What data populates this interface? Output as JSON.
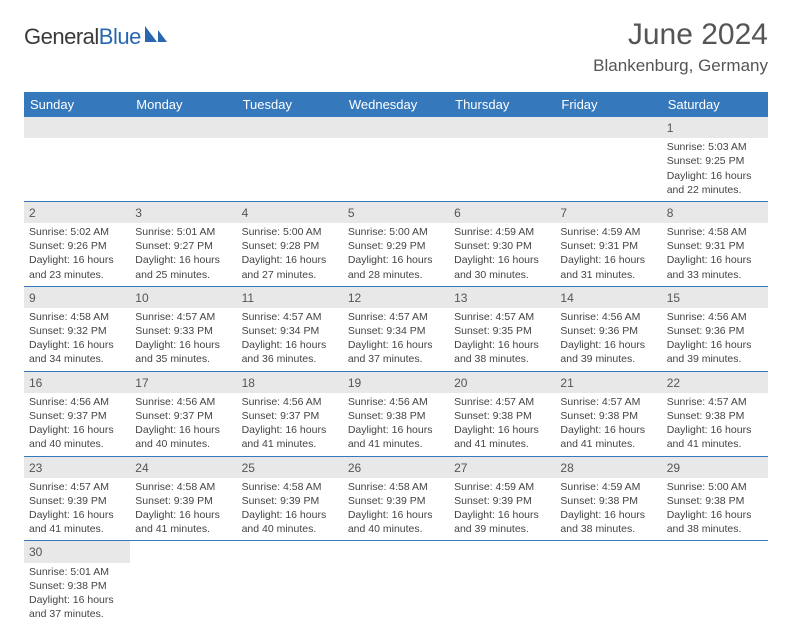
{
  "brand": {
    "general": "General",
    "blue": "Blue"
  },
  "title": "June 2024",
  "location": "Blankenburg, Germany",
  "colors": {
    "header_bg": "#3678bc",
    "header_fg": "#ffffff",
    "daybar_bg": "#e8e8e8",
    "rule": "#3678bc"
  },
  "weekdays": [
    "Sunday",
    "Monday",
    "Tuesday",
    "Wednesday",
    "Thursday",
    "Friday",
    "Saturday"
  ],
  "weeks": [
    [
      null,
      null,
      null,
      null,
      null,
      null,
      {
        "n": "1",
        "sr": "5:03 AM",
        "ss": "9:25 PM",
        "dl": "16 hours and 22 minutes."
      }
    ],
    [
      {
        "n": "2",
        "sr": "5:02 AM",
        "ss": "9:26 PM",
        "dl": "16 hours and 23 minutes."
      },
      {
        "n": "3",
        "sr": "5:01 AM",
        "ss": "9:27 PM",
        "dl": "16 hours and 25 minutes."
      },
      {
        "n": "4",
        "sr": "5:00 AM",
        "ss": "9:28 PM",
        "dl": "16 hours and 27 minutes."
      },
      {
        "n": "5",
        "sr": "5:00 AM",
        "ss": "9:29 PM",
        "dl": "16 hours and 28 minutes."
      },
      {
        "n": "6",
        "sr": "4:59 AM",
        "ss": "9:30 PM",
        "dl": "16 hours and 30 minutes."
      },
      {
        "n": "7",
        "sr": "4:59 AM",
        "ss": "9:31 PM",
        "dl": "16 hours and 31 minutes."
      },
      {
        "n": "8",
        "sr": "4:58 AM",
        "ss": "9:31 PM",
        "dl": "16 hours and 33 minutes."
      }
    ],
    [
      {
        "n": "9",
        "sr": "4:58 AM",
        "ss": "9:32 PM",
        "dl": "16 hours and 34 minutes."
      },
      {
        "n": "10",
        "sr": "4:57 AM",
        "ss": "9:33 PM",
        "dl": "16 hours and 35 minutes."
      },
      {
        "n": "11",
        "sr": "4:57 AM",
        "ss": "9:34 PM",
        "dl": "16 hours and 36 minutes."
      },
      {
        "n": "12",
        "sr": "4:57 AM",
        "ss": "9:34 PM",
        "dl": "16 hours and 37 minutes."
      },
      {
        "n": "13",
        "sr": "4:57 AM",
        "ss": "9:35 PM",
        "dl": "16 hours and 38 minutes."
      },
      {
        "n": "14",
        "sr": "4:56 AM",
        "ss": "9:36 PM",
        "dl": "16 hours and 39 minutes."
      },
      {
        "n": "15",
        "sr": "4:56 AM",
        "ss": "9:36 PM",
        "dl": "16 hours and 39 minutes."
      }
    ],
    [
      {
        "n": "16",
        "sr": "4:56 AM",
        "ss": "9:37 PM",
        "dl": "16 hours and 40 minutes."
      },
      {
        "n": "17",
        "sr": "4:56 AM",
        "ss": "9:37 PM",
        "dl": "16 hours and 40 minutes."
      },
      {
        "n": "18",
        "sr": "4:56 AM",
        "ss": "9:37 PM",
        "dl": "16 hours and 41 minutes."
      },
      {
        "n": "19",
        "sr": "4:56 AM",
        "ss": "9:38 PM",
        "dl": "16 hours and 41 minutes."
      },
      {
        "n": "20",
        "sr": "4:57 AM",
        "ss": "9:38 PM",
        "dl": "16 hours and 41 minutes."
      },
      {
        "n": "21",
        "sr": "4:57 AM",
        "ss": "9:38 PM",
        "dl": "16 hours and 41 minutes."
      },
      {
        "n": "22",
        "sr": "4:57 AM",
        "ss": "9:38 PM",
        "dl": "16 hours and 41 minutes."
      }
    ],
    [
      {
        "n": "23",
        "sr": "4:57 AM",
        "ss": "9:39 PM",
        "dl": "16 hours and 41 minutes."
      },
      {
        "n": "24",
        "sr": "4:58 AM",
        "ss": "9:39 PM",
        "dl": "16 hours and 41 minutes."
      },
      {
        "n": "25",
        "sr": "4:58 AM",
        "ss": "9:39 PM",
        "dl": "16 hours and 40 minutes."
      },
      {
        "n": "26",
        "sr": "4:58 AM",
        "ss": "9:39 PM",
        "dl": "16 hours and 40 minutes."
      },
      {
        "n": "27",
        "sr": "4:59 AM",
        "ss": "9:39 PM",
        "dl": "16 hours and 39 minutes."
      },
      {
        "n": "28",
        "sr": "4:59 AM",
        "ss": "9:38 PM",
        "dl": "16 hours and 38 minutes."
      },
      {
        "n": "29",
        "sr": "5:00 AM",
        "ss": "9:38 PM",
        "dl": "16 hours and 38 minutes."
      }
    ],
    [
      {
        "n": "30",
        "sr": "5:01 AM",
        "ss": "9:38 PM",
        "dl": "16 hours and 37 minutes."
      },
      null,
      null,
      null,
      null,
      null,
      null
    ]
  ],
  "labels": {
    "sunrise": "Sunrise: ",
    "sunset": "Sunset: ",
    "daylight": "Daylight: "
  }
}
